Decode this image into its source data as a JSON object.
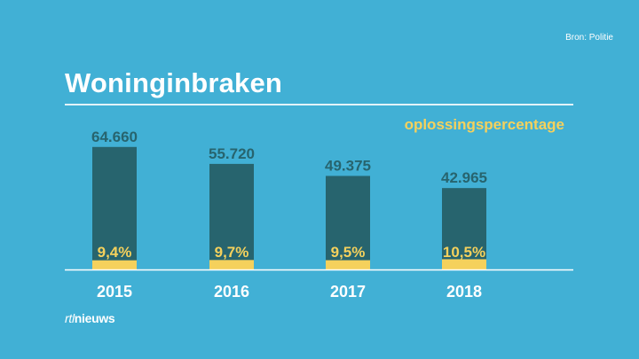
{
  "source_text": "Bron: Politie",
  "title": "Woninginbraken",
  "logo": {
    "prefix": "rtl",
    "name": "nieuws"
  },
  "colors": {
    "background": "#41b0d5",
    "bar": "#27646e",
    "accent": "#f5d15c",
    "value_text": "#27646e",
    "white": "#ffffff"
  },
  "chart_data": {
    "type": "bar",
    "title": "Woninginbraken",
    "categories": [
      "2015",
      "2016",
      "2017",
      "2018"
    ],
    "series": [
      {
        "name": "",
        "values": [
          64660,
          55720,
          49375,
          42965
        ],
        "labels": [
          "64.660",
          "55.720",
          "49.375",
          "42.965"
        ]
      },
      {
        "name": "oplossingspercentage",
        "values": [
          9.4,
          9.7,
          9.5,
          10.5
        ],
        "labels": [
          "9,4%",
          "9,7%",
          "9,5%",
          "10,5%"
        ]
      }
    ],
    "ylim": [
      0,
      80000
    ],
    "grid": false,
    "legend": "top-right"
  }
}
